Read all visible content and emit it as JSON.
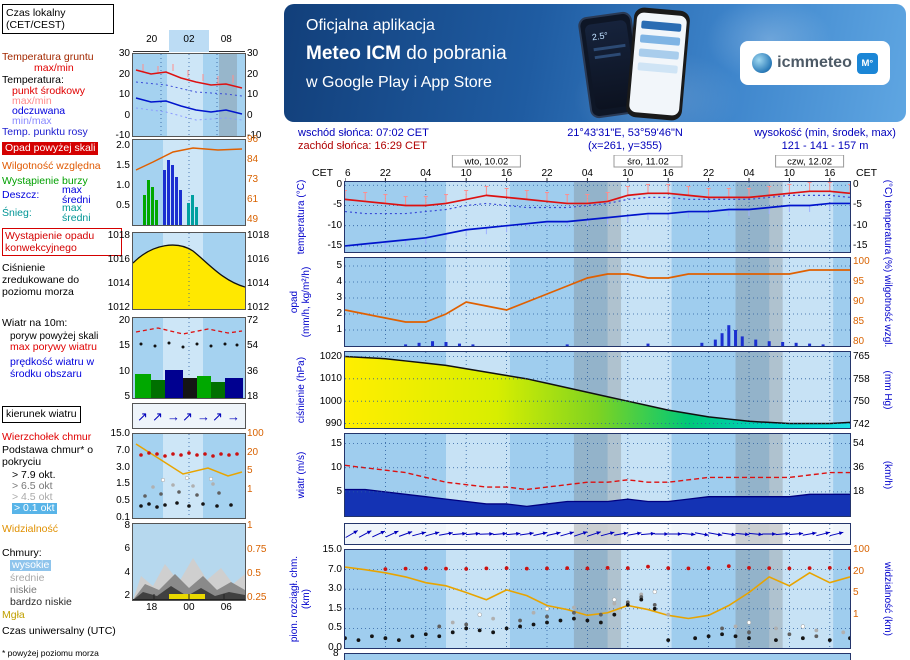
{
  "banner": {
    "line1": "Oficjalna aplikacja",
    "line2_bold": "Meteo ICM",
    "line2_rest": " do pobrania",
    "line3": "w Google Play i App Store",
    "logo_text": "icmmeteo",
    "logo_badge": "M°",
    "phone_temp": "2.5°"
  },
  "info_bar": {
    "sunrise": "wschód słońca: 07:02 CET",
    "sunset": "zachód słońca: 16:29 CET",
    "coords": "21°43'31\"E, 53°59'46\"N",
    "grid_xy": "(x=261,  y=355)",
    "altitude_label": "wysokość (min, środek, max)",
    "altitude_values": "121 - 141 - 157 m"
  },
  "timeline": {
    "tz_left": "CET",
    "tz_right": "CET",
    "hour_ticks": [
      {
        "h": 0,
        "label": "16"
      },
      {
        "h": 6,
        "label": "22"
      },
      {
        "h": 12,
        "label": "04"
      },
      {
        "h": 18,
        "label": "10"
      },
      {
        "h": 24,
        "label": "16"
      },
      {
        "h": 30,
        "label": "22"
      },
      {
        "h": 36,
        "label": "04"
      },
      {
        "h": 42,
        "label": "10"
      },
      {
        "h": 48,
        "label": "16"
      },
      {
        "h": 54,
        "label": "22"
      },
      {
        "h": 60,
        "label": "04"
      },
      {
        "h": 66,
        "label": "10"
      },
      {
        "h": 72,
        "label": "16"
      }
    ],
    "dates": [
      {
        "h": 21,
        "label": "wto, 10.02"
      },
      {
        "h": 45,
        "label": "śro, 11.02"
      },
      {
        "h": 69,
        "label": "czw, 12.02"
      }
    ]
  },
  "legend": {
    "local_time": "Czas lokalny (CET/CEST)",
    "time_mini_ticks": [
      "20",
      "02",
      "08"
    ],
    "ground_temp": "Temperatura gruntu",
    "ground_temp_range": "max/min",
    "temp_header": "Temperatura:",
    "temp_mid": "punkt środkowy",
    "temp_mid_range": "max/min",
    "temp_felt": "odczuwana",
    "temp_felt_range": "min/max",
    "dew_point": "Temp. punktu rosy",
    "temp_mini_left": [
      "30",
      "20",
      "10",
      "0",
      "-10"
    ],
    "temp_mini_right": [
      "30",
      "20",
      "10",
      "0",
      "-10"
    ],
    "precip_over": "Opad powyżej skali",
    "humidity": "Wilgotność względna",
    "storm": "Wystąpienie burzy",
    "rain": "Deszcz:",
    "rain_max": "max",
    "rain_mean": "średni",
    "snow": "Śnieg:",
    "snow_max": "max",
    "snow_mean": "średni",
    "precip_mini_left": [
      "2.0",
      "1.5",
      "1.0",
      "0.5"
    ],
    "precip_mini_right": [
      "96",
      "84",
      "73",
      "61",
      "49"
    ],
    "convective": "Wystąpienie opadu konwekcyjnego",
    "pressure_mini_left": [
      "1018",
      "1016",
      "1014",
      "1012"
    ],
    "pressure_mini_right": [
      "1018",
      "1016",
      "1014",
      "1012"
    ],
    "pressure_label": "Ciśnienie zredukowane do poziomu morza",
    "wind_header": "Wiatr na 10m:",
    "gust_over": "poryw powyżej skali",
    "gust_max": "max porywy wiatru",
    "wind_speed": "prędkość wiatru w środku obszaru",
    "wind_mini_left": [
      "20",
      "15",
      "10",
      "5"
    ],
    "wind_mini_right": [
      "72",
      "54",
      "36",
      "18"
    ],
    "wind_dir": "kierunek wiatru",
    "cloud_top": "Wierzchołek chmur",
    "cloud_base": "Podstawa chmur* o pokryciu",
    "okta_79": "> 7.9 okt.",
    "okta_65": "> 6.5 okt",
    "okta_45": "> 4.5 okt",
    "okta_01": "> 0.1 okt",
    "cloud_mini_left": [
      "15.0",
      "7.0",
      "3.0",
      "1.5",
      "0.5",
      "0.1"
    ],
    "cloud_mini_right": [
      "100",
      "20",
      "5",
      "1"
    ],
    "visibility": "Widzialność",
    "clouds_header": "Chmury:",
    "clouds_high": "wysokie",
    "clouds_mid": "średnie",
    "clouds_low": "niskie",
    "clouds_vlow": "bardzo niskie",
    "fog": "Mgła",
    "cover_mini_left": [
      "8",
      "6",
      "4",
      "2"
    ],
    "cover_mini_right": [
      "1",
      "0.75",
      "0.5",
      "0.25"
    ],
    "cover_mini_times": [
      "18",
      "00",
      "06"
    ],
    "utc": "Czas uniwersalny (UTC)",
    "footnote": "* powyżej poziomu morza"
  },
  "panels_misc": {
    "bottom_tick": "8"
  },
  "chart_data": [
    {
      "id": "temperature",
      "type": "line",
      "ylabel_left": "temperatura (°C)",
      "ylabel_right": "(°C)  temperatura",
      "yticks_left": [
        "0",
        "-5",
        "-10",
        "-15"
      ],
      "yticks_right": [
        "0",
        "-5",
        "-10",
        "-15"
      ],
      "ylim": [
        -16.5,
        0.8
      ],
      "spread_up": 2.2,
      "spread_down": 1.6,
      "x_hours": [
        0,
        3,
        6,
        9,
        12,
        15,
        18,
        21,
        24,
        27,
        30,
        33,
        36,
        39,
        42,
        45,
        48,
        51,
        54,
        57,
        60,
        63,
        66,
        69,
        72,
        75
      ],
      "series": [
        {
          "name": "temperatura (punkt środkowy)",
          "unit": "°C",
          "color": "#dd1111",
          "values": [
            -3.5,
            -4,
            -4.5,
            -5,
            -5,
            -4.5,
            -3.5,
            -2.5,
            -3,
            -3.5,
            -4,
            -4.5,
            -4.5,
            -4,
            -2.5,
            -2,
            -2,
            -2.5,
            -3,
            -3,
            -3,
            -2.5,
            -2,
            -1.5,
            -1.5,
            -2
          ]
        },
        {
          "name": "temperatura odczuwana",
          "unit": "°C",
          "color": "#0014cc",
          "values": [
            -15,
            -14.5,
            -14,
            -13.5,
            -13,
            -12,
            -11,
            -10.5,
            -10,
            -9.5,
            -9,
            -9,
            -8.5,
            -8,
            -7.5,
            -7,
            -7,
            -6.5,
            -6.5,
            -6,
            -6,
            -5.5,
            -5,
            -5,
            -4.5,
            -4.5
          ]
        },
        {
          "name": "temperatura punktu rosy",
          "unit": "°C",
          "color": "#3a4bd8",
          "style": "dotted",
          "values": [
            -6.5,
            -7,
            -7,
            -7,
            -6.5,
            -6,
            -5,
            -4.5,
            -5,
            -5.5,
            -5.5,
            -5.5,
            -5,
            -4.5,
            -3.5,
            -3,
            -3,
            -3.5,
            -3.5,
            -3.5,
            -3.5,
            -3,
            -2.5,
            -2.5,
            -2.5,
            -3
          ]
        }
      ]
    },
    {
      "id": "precipitation_humidity",
      "type": "bar+line",
      "ylabel_left_parts": [
        "opad",
        "(mm/h, kg/m²/h)"
      ],
      "ylabel_right": "(%)  wilgotność wzgl.",
      "yticks_left": [
        "5",
        "4",
        "3",
        "2",
        "1"
      ],
      "yticks_right": [
        "100",
        "95",
        "90",
        "85",
        "80"
      ],
      "ylim_left": [
        0,
        5.5
      ],
      "ylim_right": [
        79,
        101
      ],
      "x_hours": [
        0,
        3,
        6,
        9,
        12,
        15,
        18,
        21,
        24,
        27,
        30,
        33,
        36,
        39,
        42,
        45,
        48,
        51,
        54,
        57,
        60,
        63,
        66,
        69,
        72,
        75
      ],
      "humidity_pct": [
        88,
        87,
        86,
        85,
        85,
        87,
        90,
        89,
        88,
        90,
        92,
        94,
        96,
        97,
        97,
        96,
        96,
        97,
        97,
        97,
        97,
        97,
        97,
        98,
        98,
        98
      ],
      "precip_bars_mm_h": [
        [
          9,
          0.1
        ],
        [
          11,
          0.2
        ],
        [
          13,
          0.3
        ],
        [
          15,
          0.25
        ],
        [
          17,
          0.15
        ],
        [
          19,
          0.1
        ],
        [
          33,
          0.1
        ],
        [
          45,
          0.15
        ],
        [
          53,
          0.2
        ],
        [
          55,
          0.4
        ],
        [
          56,
          0.8
        ],
        [
          57,
          1.3
        ],
        [
          58,
          1
        ],
        [
          59,
          0.6
        ],
        [
          61,
          0.4
        ],
        [
          63,
          0.3
        ],
        [
          65,
          0.25
        ],
        [
          67,
          0.2
        ],
        [
          69,
          0.15
        ],
        [
          71,
          0.1
        ]
      ]
    },
    {
      "id": "pressure",
      "type": "area",
      "ylabel_left": "ciśnienie (hPa)",
      "ylabel_right": "(mm Hg)",
      "yticks_left": [
        "1020",
        "1010",
        "1000",
        "990"
      ],
      "yticks_right": [
        "765",
        "758",
        "750",
        "742"
      ],
      "ylim": [
        988,
        1022
      ],
      "x_hours": [
        0,
        3,
        6,
        9,
        12,
        15,
        18,
        21,
        24,
        27,
        30,
        33,
        36,
        39,
        42,
        45,
        48,
        51,
        54,
        57,
        60,
        63,
        66,
        69,
        72,
        75
      ],
      "values_hpa": [
        1020,
        1019.5,
        1019,
        1018,
        1017,
        1016,
        1014.5,
        1013,
        1011.5,
        1010,
        1008,
        1006,
        1004,
        1002,
        1000,
        998,
        996,
        994.5,
        993,
        992,
        991,
        990.5,
        990,
        990,
        990,
        990.5
      ]
    },
    {
      "id": "wind",
      "type": "area+line",
      "ylabel_left": "wiatr (m/s)",
      "ylabel_right": "(km/h)",
      "yticks_left": [
        "15",
        "10",
        "5"
      ],
      "yticks_right": [
        "54",
        "36",
        "18"
      ],
      "ylim": [
        0,
        17
      ],
      "x_hours": [
        0,
        3,
        6,
        9,
        12,
        15,
        18,
        21,
        24,
        27,
        30,
        33,
        36,
        39,
        42,
        45,
        48,
        51,
        54,
        57,
        60,
        63,
        66,
        69,
        72,
        75
      ],
      "speed_ms": [
        5.5,
        5.5,
        5,
        4.5,
        4,
        3.5,
        3,
        2.5,
        2.5,
        2,
        2.5,
        3,
        3,
        3,
        3.5,
        3,
        3,
        3.5,
        4,
        4,
        4,
        4,
        4,
        4.5,
        4.5,
        4.5
      ],
      "gusts_ms": [
        10.5,
        10,
        9.5,
        9,
        8,
        7,
        6.5,
        6,
        6,
        5.5,
        6,
        6.5,
        7,
        7,
        7.5,
        7,
        7,
        7.5,
        8,
        8,
        8,
        8,
        8,
        8.5,
        9,
        9
      ]
    },
    {
      "id": "wind_direction",
      "type": "vector",
      "x_hours": [
        0,
        3,
        6,
        9,
        12,
        15,
        18,
        21,
        24,
        27,
        30,
        33,
        36,
        39,
        42,
        45,
        48,
        51,
        54,
        57,
        60,
        63,
        66,
        69,
        72,
        75
      ],
      "direction_deg": [
        60,
        62,
        65,
        70,
        75,
        80,
        85,
        88,
        85,
        82,
        78,
        74,
        72,
        75,
        80,
        85,
        90,
        95,
        100,
        98,
        95,
        90,
        85,
        80,
        76,
        72
      ]
    },
    {
      "id": "clouds_visibility",
      "type": "scatter+line",
      "ylabel_left_parts": [
        "pion. rozciągł. chm.",
        "(km)"
      ],
      "ylabel_right": "widzialność  (km)",
      "yticks_left": [
        "15.0",
        "7.0",
        "3.0",
        "1.5",
        "0.5",
        "0.0"
      ],
      "yticks_right": [
        "100",
        "20",
        "5",
        "1"
      ],
      "y_scale_km": [
        0,
        0.5,
        1.5,
        3,
        7,
        15
      ],
      "visibility_range_km": [
        0.1,
        100
      ],
      "x_hours": [
        0,
        3,
        6,
        9,
        12,
        15,
        18,
        21,
        24,
        27,
        30,
        33,
        36,
        39,
        42,
        45,
        48,
        51,
        54,
        57,
        60,
        63,
        66,
        69,
        72,
        75
      ],
      "visibility_km": [
        30,
        25,
        20,
        15,
        10,
        8,
        5,
        3,
        6,
        4,
        2,
        1.5,
        1,
        1.2,
        2,
        1.5,
        1,
        0.8,
        1,
        2,
        5,
        15,
        8,
        20,
        10,
        15
      ],
      "cloud_top_km": [
        [
          6,
          7.2
        ],
        [
          9,
          7.4
        ],
        [
          12,
          7.5
        ],
        [
          15,
          7.4
        ],
        [
          18,
          7.3
        ],
        [
          21,
          7.5
        ],
        [
          24,
          7.6
        ],
        [
          27,
          7.4
        ],
        [
          30,
          7.5
        ],
        [
          33,
          7.6
        ],
        [
          36,
          7.5
        ],
        [
          39,
          7.7
        ],
        [
          42,
          7.6
        ],
        [
          45,
          8.2
        ],
        [
          48,
          7.6
        ],
        [
          51,
          7.5
        ],
        [
          54,
          7.6
        ],
        [
          57,
          8.4
        ],
        [
          60,
          7.7
        ],
        [
          63,
          7.6
        ],
        [
          66,
          7.5
        ],
        [
          69,
          7.6
        ],
        [
          72,
          7.7
        ],
        [
          75,
          7.6
        ]
      ],
      "base_okta_79": [
        [
          0,
          0.25
        ],
        [
          2,
          0.2
        ],
        [
          4,
          0.3
        ],
        [
          6,
          0.25
        ],
        [
          8,
          0.2
        ],
        [
          10,
          0.3
        ],
        [
          12,
          0.35
        ],
        [
          14,
          0.3
        ],
        [
          16,
          0.4
        ],
        [
          18,
          0.5
        ],
        [
          20,
          0.45
        ],
        [
          22,
          0.4
        ],
        [
          24,
          0.5
        ],
        [
          26,
          0.6
        ],
        [
          28,
          0.7
        ],
        [
          30,
          0.8
        ],
        [
          32,
          0.9
        ],
        [
          34,
          1
        ],
        [
          36,
          0.9
        ],
        [
          38,
          0.8
        ],
        [
          40,
          1.2
        ],
        [
          42,
          1.8
        ],
        [
          44,
          2.2
        ],
        [
          46,
          1.5
        ],
        [
          48,
          0.2
        ],
        [
          52,
          0.25
        ],
        [
          54,
          0.3
        ],
        [
          56,
          0.35
        ],
        [
          58,
          0.3
        ],
        [
          60,
          0.25
        ],
        [
          64,
          0.2
        ],
        [
          68,
          0.25
        ],
        [
          72,
          0.2
        ],
        [
          75,
          0.25
        ]
      ],
      "base_okta_65": [
        [
          14,
          0.6
        ],
        [
          18,
          0.7
        ],
        [
          26,
          0.9
        ],
        [
          30,
          1.1
        ],
        [
          34,
          1.3
        ],
        [
          38,
          1.2
        ],
        [
          42,
          2
        ],
        [
          44,
          2.4
        ],
        [
          46,
          1.8
        ],
        [
          56,
          0.5
        ],
        [
          60,
          0.4
        ],
        [
          66,
          0.35
        ],
        [
          70,
          0.3
        ]
      ],
      "base_okta_45": [
        [
          16,
          0.8
        ],
        [
          22,
          1
        ],
        [
          28,
          1.3
        ],
        [
          34,
          1.6
        ],
        [
          40,
          1.9
        ],
        [
          44,
          2.6
        ],
        [
          48,
          1.2
        ],
        [
          58,
          0.6
        ],
        [
          64,
          0.5
        ],
        [
          70,
          0.45
        ],
        [
          74,
          0.4
        ]
      ],
      "base_okta_01": [
        [
          20,
          1.2
        ],
        [
          30,
          1.5
        ],
        [
          40,
          2.2
        ],
        [
          46,
          2.8
        ],
        [
          60,
          0.8
        ],
        [
          68,
          0.6
        ]
      ]
    }
  ]
}
